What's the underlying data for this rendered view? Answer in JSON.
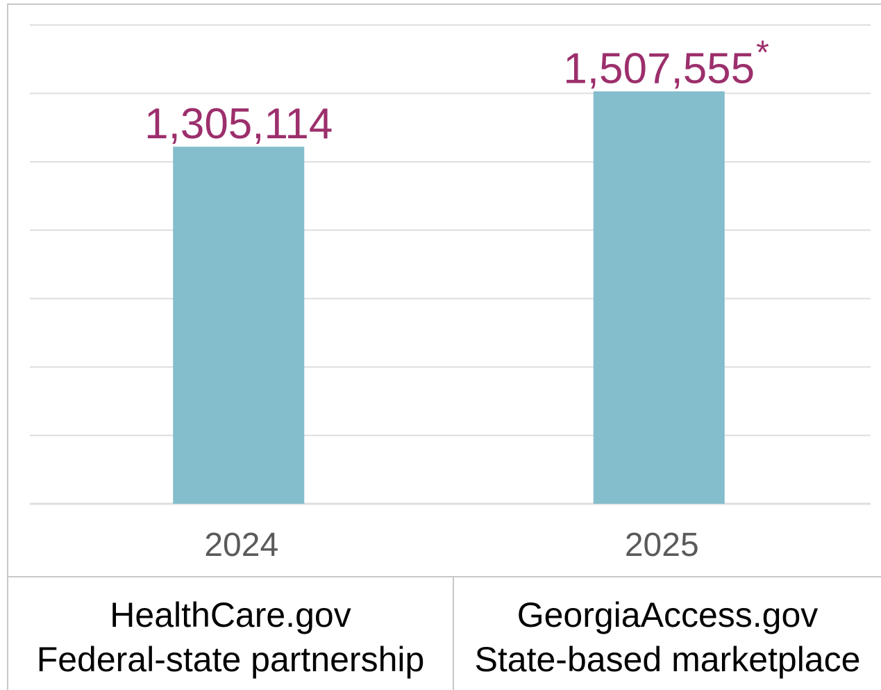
{
  "colors": {
    "bar": "#84bdcc",
    "value_label": "#9c2f6c",
    "axis_label": "#5a5a5a",
    "gridline": "#dedede",
    "frame_border": "#c8c8c8"
  },
  "chart_data": {
    "type": "bar",
    "categories": [
      "2024",
      "2025"
    ],
    "values": [
      1305114,
      1507555
    ],
    "value_labels": [
      "1,305,114",
      "1,507,555"
    ],
    "value_footnote_marks": [
      "",
      "*"
    ],
    "title": "",
    "xlabel": "",
    "ylabel": "",
    "ylim": [
      0,
      1750000
    ],
    "y_tick_labels_shown": false,
    "gridlines": 8,
    "grid": true,
    "legend": "none"
  },
  "captions": [
    {
      "line1": "HealthCare.gov",
      "line2": "Federal-state partnership"
    },
    {
      "line1": "GeorgiaAccess.gov",
      "line2": "State-based marketplace"
    }
  ]
}
